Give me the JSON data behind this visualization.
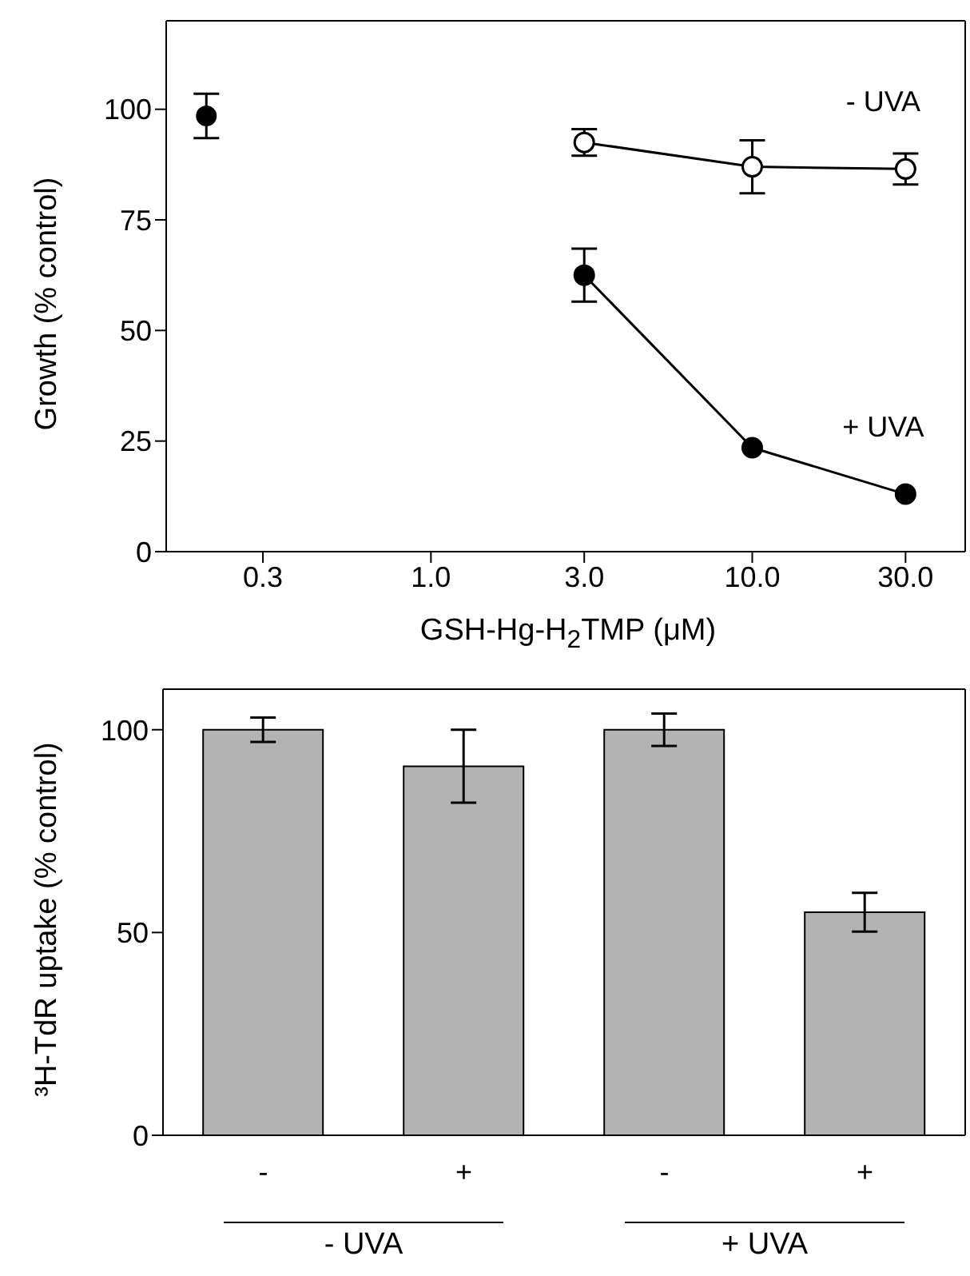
{
  "chart_data": [
    {
      "type": "line",
      "xlabel": "GSH-Hg-H$_{2}$TMP (μM)",
      "ylabel": "Growth (% control)",
      "log": "x",
      "marker": "circle",
      "xlim": [
        0.15,
        46
      ],
      "xticks": [
        0.3,
        {
          "value": 1,
          "label": "1.0"
        },
        {
          "value": 3,
          "label": "3.0"
        },
        {
          "value": 10,
          "label": "10.0"
        },
        {
          "value": 30,
          "label": "30.0"
        }
      ],
      "ylim": [
        0,
        120
      ],
      "yticks": [
        0,
        25,
        50,
        75,
        100
      ],
      "series": [
        {
          "type": "scatter",
          "color": "#000000",
          "x": [
            0.2
          ],
          "values": [
            98.5
          ],
          "errors": [
            5
          ]
        },
        {
          "name": "- UVA",
          "color": "#ffffff",
          "x": [
            3,
            10,
            30
          ],
          "values": [
            92.5,
            87,
            86.5
          ],
          "errors": [
            3,
            6,
            3.5
          ]
        },
        {
          "name": "+ UVA",
          "color": "#000000",
          "x": [
            3,
            10,
            30
          ],
          "values": [
            62.5,
            23.5,
            13
          ],
          "errors": [
            6,
            null,
            null
          ]
        }
      ]
    },
    {
      "type": "bar",
      "ylabel": "³H-TdR uptake (% control)",
      "categories": [
        "-",
        "+",
        "-",
        "+"
      ],
      "values": [
        100,
        91,
        100,
        55
      ],
      "errors": [
        3,
        9,
        4,
        4.8
      ],
      "color": "#b3b3b3",
      "ylim": [
        0,
        110
      ],
      "yticks": [
        0,
        50,
        100
      ],
      "annotations": [
        "- UVA",
        "+ UVA"
      ]
    }
  ]
}
